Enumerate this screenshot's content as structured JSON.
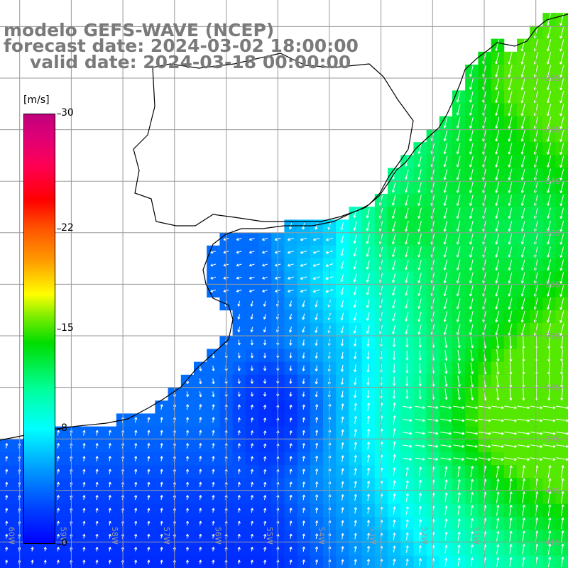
{
  "title": {
    "model": "modelo GEFS-WAVE (NCEP)",
    "forecast": "forecast date: 2024-03-02 18:00:00",
    "valid": "valid date: 2024-03-18 00:00:00"
  },
  "colorbar": {
    "unit": "[m/s]",
    "min": 0,
    "max": 30,
    "ticks": [
      {
        "value": 30,
        "label": "30"
      },
      {
        "value": 22,
        "label": "22"
      },
      {
        "value": 15,
        "label": "15"
      },
      {
        "value": 8,
        "label": "8"
      },
      {
        "value": 0,
        "label": "0"
      }
    ],
    "colors": [
      "#0000ff",
      "#00ffff",
      "#00dd00",
      "#ffff00",
      "#ff0000",
      "#c0007c"
    ]
  },
  "map": {
    "lon_range": [
      -61,
      -50
    ],
    "lat_range": [
      -42,
      -30
    ],
    "latitude_labels": [
      "32S",
      "33S",
      "34S",
      "35S",
      "36S",
      "37S",
      "38S",
      "39S",
      "40S",
      "41S"
    ],
    "longitude_labels": [
      "60W",
      "59W",
      "58W",
      "57W",
      "56W",
      "55W",
      "54W",
      "53W",
      "52W",
      "51W"
    ],
    "land_color": "#ffffff",
    "grid_color": "#9a9a9a",
    "coast_color": "#000000",
    "arrow_color": "#ffffff"
  }
}
